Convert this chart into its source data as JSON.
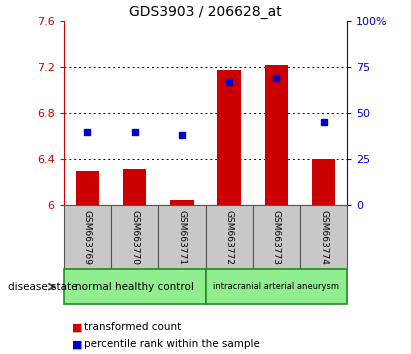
{
  "title": "GDS3903 / 206628_at",
  "samples": [
    "GSM663769",
    "GSM663770",
    "GSM663771",
    "GSM663772",
    "GSM663773",
    "GSM663774"
  ],
  "red_bar_tops": [
    6.3,
    6.32,
    6.05,
    7.18,
    7.22,
    6.4
  ],
  "blue_pct": [
    40,
    40,
    38,
    67,
    69,
    45
  ],
  "bar_baseline": 6.0,
  "ylim_left": [
    6.0,
    7.6
  ],
  "ylim_right": [
    0,
    100
  ],
  "yticks_left": [
    6.0,
    6.4,
    6.8,
    7.2,
    7.6
  ],
  "yticks_right": [
    0,
    25,
    50,
    75,
    100
  ],
  "ytick_labels_left": [
    "6",
    "6.4",
    "6.8",
    "7.2",
    "7.6"
  ],
  "ytick_labels_right": [
    "0",
    "25",
    "50",
    "75",
    "100%"
  ],
  "left_axis_color": "#cc0000",
  "right_axis_color": "#0000cc",
  "bar_color": "#cc0000",
  "marker_color": "#0000cc",
  "group1_label": "normal healthy control",
  "group2_label": "intracranial arterial aneurysm",
  "group_color": "#90ee90",
  "group_border": "#228B22",
  "sample_box_color": "#c8c8c8",
  "sample_box_border": "#555555",
  "legend_items": [
    {
      "color": "#cc0000",
      "label": "transformed count"
    },
    {
      "color": "#0000cc",
      "label": "percentile rank within the sample"
    }
  ],
  "disease_state_label": "disease state",
  "background_color": "#ffffff"
}
